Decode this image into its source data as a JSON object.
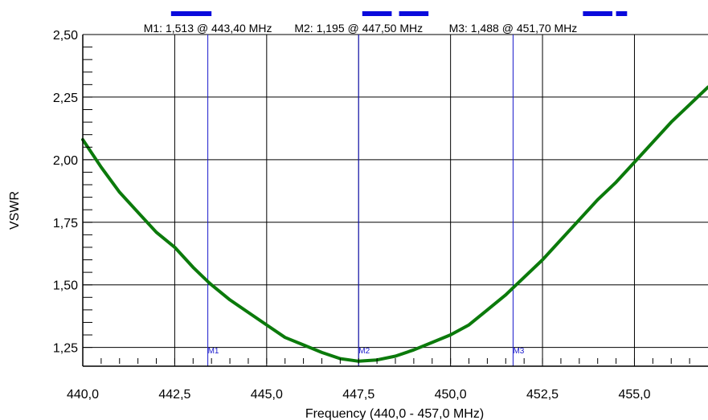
{
  "chart_data": {
    "type": "line",
    "xlabel": "Frequency (440,0 - 457,0 MHz)",
    "ylabel": "VSWR",
    "xlim": [
      440.0,
      457.0
    ],
    "ylim": [
      1.175,
      2.5
    ],
    "x_ticks": [
      "440,0",
      "442,5",
      "445,0",
      "447,5",
      "450,0",
      "452,5",
      "455,0"
    ],
    "y_ticks": [
      "1,25",
      "1,50",
      "1,75",
      "2,00",
      "2,25",
      "2,50"
    ],
    "grid": true,
    "colors": {
      "line": "#0b7a0b",
      "marker": "#1a1acc",
      "band": "#0a0adc",
      "grid": "#000000"
    },
    "series": [
      {
        "x": [
          440.0,
          440.5,
          441.0,
          441.5,
          442.0,
          442.5,
          443.0,
          443.4,
          443.5,
          444.0,
          444.5,
          445.0,
          445.5,
          446.0,
          446.5,
          447.0,
          447.5,
          448.0,
          448.5,
          449.0,
          449.5,
          450.0,
          450.5,
          451.0,
          451.5,
          451.7,
          452.0,
          452.5,
          453.0,
          453.5,
          454.0,
          454.5,
          455.0,
          455.5,
          456.0,
          456.5,
          457.0
        ],
        "values": [
          2.08,
          1.97,
          1.87,
          1.79,
          1.71,
          1.65,
          1.57,
          1.513,
          1.5,
          1.44,
          1.39,
          1.34,
          1.29,
          1.26,
          1.23,
          1.205,
          1.195,
          1.2,
          1.215,
          1.24,
          1.27,
          1.3,
          1.34,
          1.4,
          1.46,
          1.488,
          1.53,
          1.6,
          1.68,
          1.76,
          1.84,
          1.91,
          1.99,
          2.07,
          2.15,
          2.22,
          2.29
        ]
      }
    ],
    "markers": [
      {
        "id": "M1",
        "x": 443.4,
        "label": "M1: 1,513  @ 443,40 MHz"
      },
      {
        "id": "M2",
        "x": 447.5,
        "label": "M2: 1,195  @ 447,50 MHz"
      },
      {
        "id": "M3",
        "x": 451.7,
        "label": "M3: 1,488  @ 451,70 MHz"
      }
    ],
    "bands": [
      {
        "start": 442.4,
        "end": 443.5
      },
      {
        "start": 447.6,
        "end": 448.4
      },
      {
        "start": 448.6,
        "end": 449.4
      },
      {
        "start": 453.6,
        "end": 454.4
      },
      {
        "start": 454.5,
        "end": 454.8
      }
    ]
  }
}
